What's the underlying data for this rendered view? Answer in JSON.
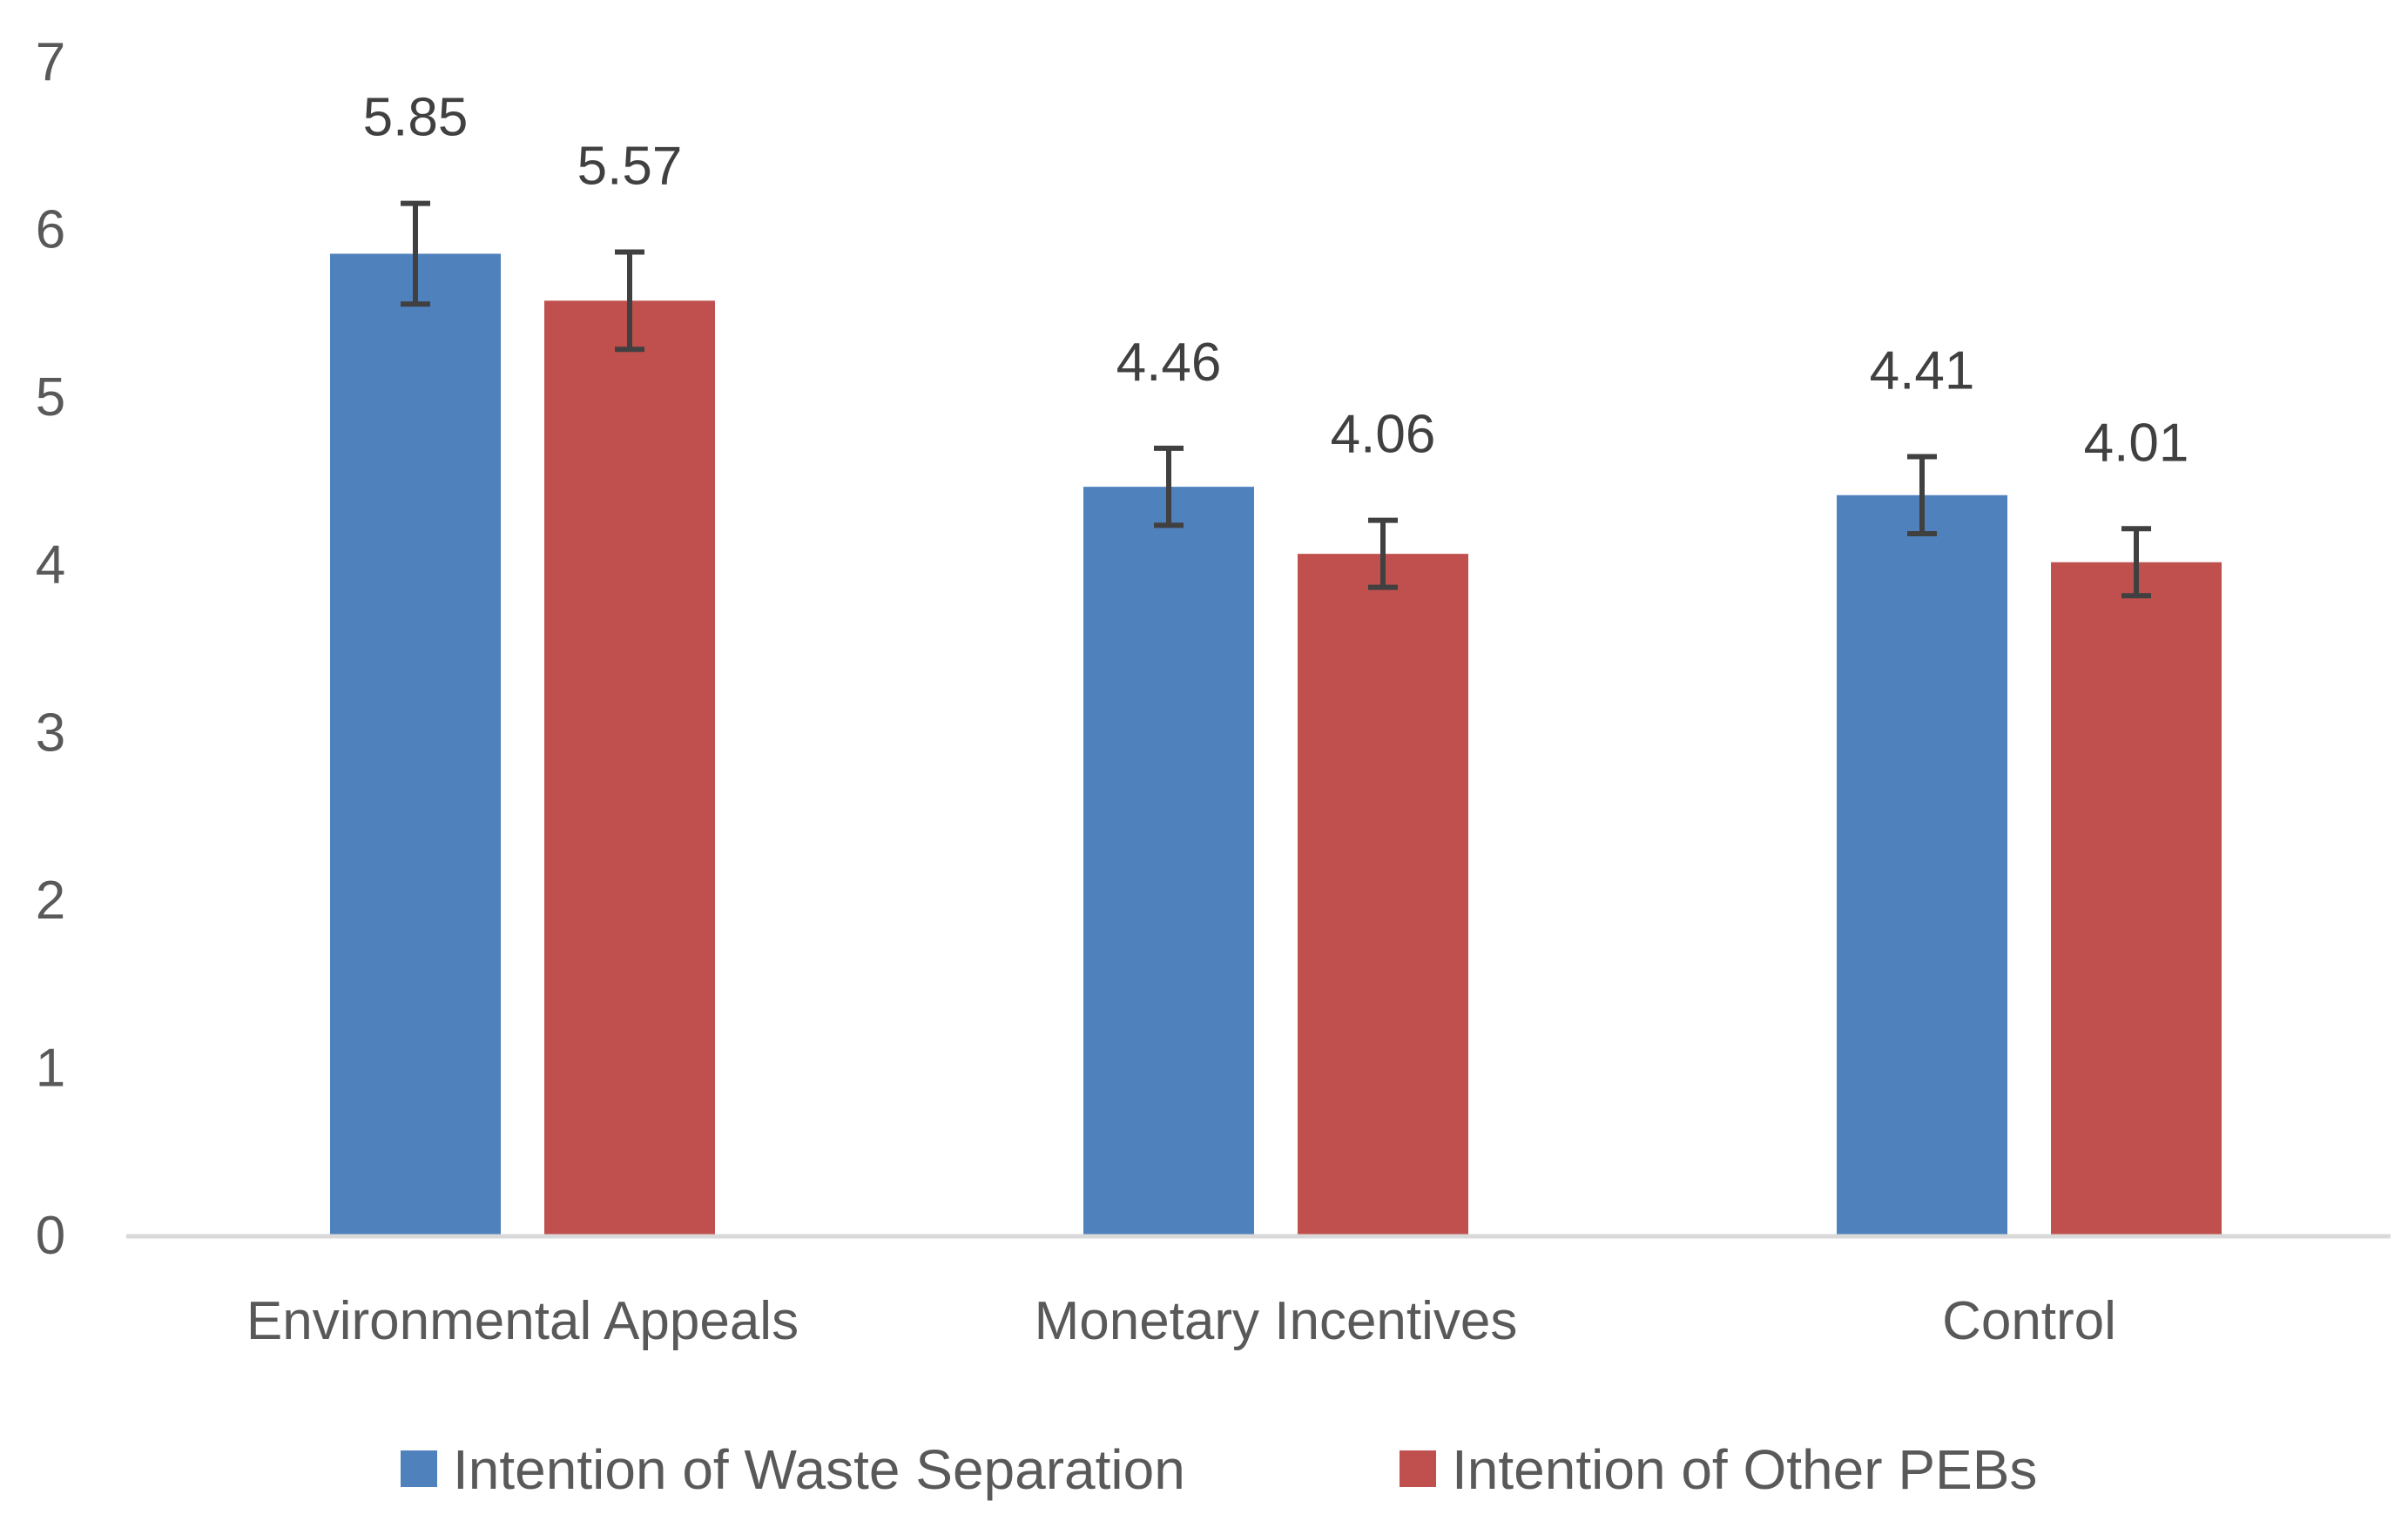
{
  "chart_data": {
    "type": "bar",
    "title": "",
    "xlabel": "",
    "ylabel": "",
    "ylim": [
      0,
      7
    ],
    "yticks": [
      0,
      1,
      2,
      3,
      4,
      5,
      6,
      7
    ],
    "grid": false,
    "legend_position": "bottom",
    "categories": [
      "Environmental Appeals",
      "Monetary Incentives",
      "Control"
    ],
    "series": [
      {
        "name": "Intention of Waste Separation",
        "color": "#4F81BD",
        "values": [
          5.85,
          4.46,
          4.41
        ],
        "error": [
          0.3,
          0.23,
          0.23
        ],
        "labels": [
          "5.85",
          "4.46",
          "4.41"
        ]
      },
      {
        "name": "Intention of Other PEBs",
        "color": "#C0504D",
        "values": [
          5.57,
          4.06,
          4.01
        ],
        "error": [
          0.29,
          0.2,
          0.2
        ],
        "labels": [
          "5.57",
          "4.06",
          "4.01"
        ]
      }
    ],
    "axis_color": "#D9D9D9",
    "error_bar_color": "#404040"
  }
}
